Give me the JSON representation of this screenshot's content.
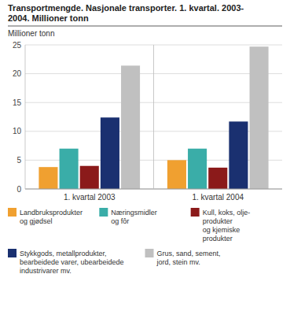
{
  "chart_data": {
    "type": "bar",
    "title": "Transportmengde. Nasjonale transporter. 1. kvartal. 2003-\n2004. Millioner tonn",
    "y_label": "Millioner tonn",
    "categories": [
      "1. kvartal 2003",
      "1. kvartal 2004"
    ],
    "series": [
      {
        "name": "Landbruksprodukter\nog gjødsel",
        "color": "#f0a030",
        "values": [
          3.8,
          5.0
        ]
      },
      {
        "name": "Næringsmidler\nog fôr",
        "color": "#3aada8",
        "values": [
          7.0,
          7.0
        ]
      },
      {
        "name": "Kull, koks, olje-\nprodukter\nog kjemiske\nprodukter",
        "color": "#8b1a1a",
        "values": [
          4.0,
          3.7
        ]
      },
      {
        "name": "Stykkgods, metallprodukter,\nbearbeidede varer, ubearbeidede\nindustrivarer mv.",
        "color": "#1a3070",
        "values": [
          12.4,
          11.7
        ]
      },
      {
        "name": "Grus, sand, sement,\njord, stein mv.",
        "color": "#c0c0c0",
        "values": [
          21.4,
          24.7
        ]
      }
    ],
    "ylim": [
      0,
      25
    ],
    "yticks": [
      0,
      5,
      10,
      15,
      20,
      25
    ],
    "grid": true,
    "legend": "bottom"
  }
}
